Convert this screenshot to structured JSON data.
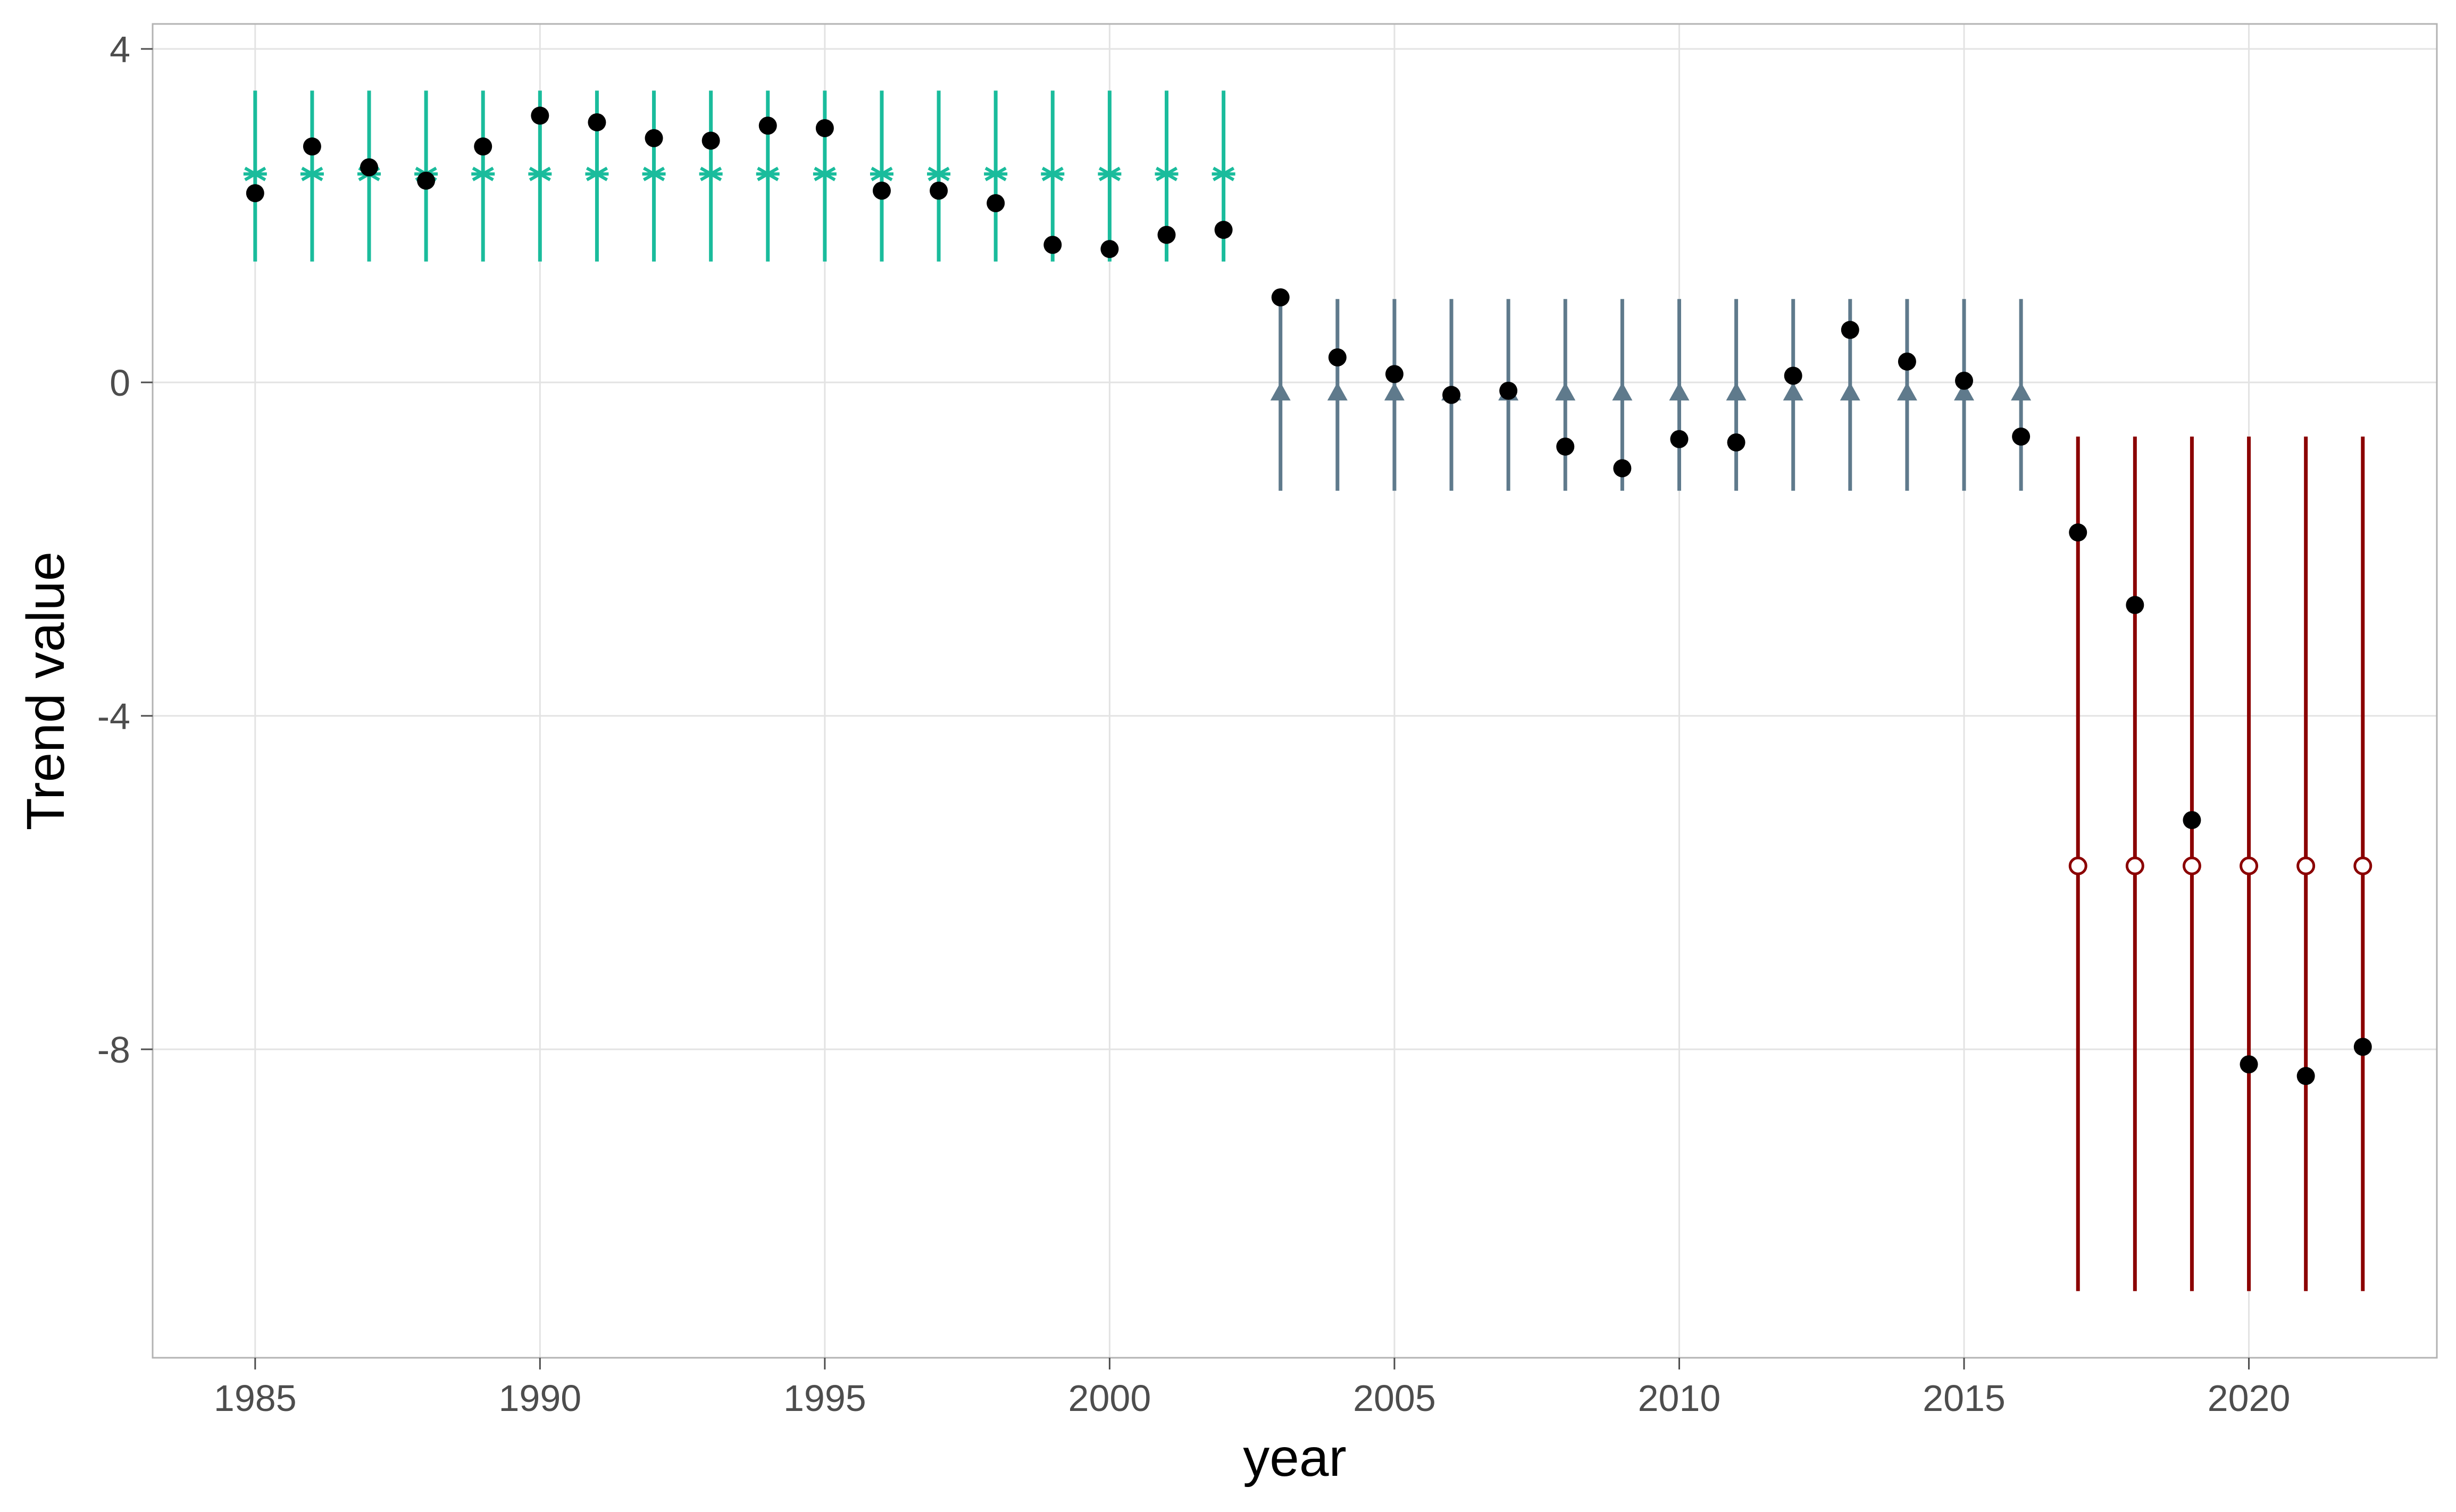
{
  "chart_data": {
    "type": "scatter",
    "xlabel": "year",
    "ylabel": "Trend value",
    "xlim": [
      1983.2,
      2023.3
    ],
    "ylim": [
      -11.7,
      4.3
    ],
    "x_ticks": [
      1985,
      1990,
      1995,
      2000,
      2005,
      2010,
      2015,
      2020
    ],
    "x_tick_labels": [
      "1985",
      "1990",
      "1995",
      "2000",
      "2005",
      "2010",
      "2015",
      "2020"
    ],
    "y_ticks": [
      4,
      0,
      -4,
      -8
    ],
    "y_tick_labels": [
      "4",
      "0",
      "-4",
      "-8"
    ],
    "grid": true,
    "legend": "none",
    "series": [
      {
        "marker": "asterisk",
        "color": "#1abc9c",
        "years": [
          1985,
          1986,
          1987,
          1988,
          1989,
          1990,
          1991,
          1992,
          1993,
          1994,
          1995,
          1996,
          1997,
          1998,
          1999,
          2000,
          2001,
          2002
        ],
        "center": 2.5,
        "lower": 1.45,
        "upper": 3.5
      },
      {
        "marker": "triangle",
        "color": "#5f7a8c",
        "years": [
          2003,
          2004,
          2005,
          2006,
          2007,
          2008,
          2009,
          2010,
          2011,
          2012,
          2013,
          2014,
          2015,
          2016
        ],
        "center": -0.12,
        "lower": -1.3,
        "upper": 1.0
      },
      {
        "marker": "open-circle",
        "color": "#8b0000",
        "years": [
          2017,
          2018,
          2019,
          2020,
          2021,
          2022
        ],
        "center": -5.8,
        "lower": -10.9,
        "upper": -0.65
      }
    ],
    "points": {
      "color": "#000000",
      "x": [
        1985,
        1986,
        1987,
        1988,
        1989,
        1990,
        1991,
        1992,
        1993,
        1994,
        1995,
        1996,
        1997,
        1998,
        1999,
        2000,
        2001,
        2002,
        2003,
        2004,
        2005,
        2006,
        2007,
        2008,
        2009,
        2010,
        2011,
        2012,
        2013,
        2014,
        2015,
        2016,
        2017,
        2018,
        2019,
        2020,
        2021,
        2022
      ],
      "y": [
        2.27,
        2.83,
        2.58,
        2.42,
        2.83,
        3.2,
        3.12,
        2.93,
        2.9,
        3.08,
        3.05,
        2.3,
        2.3,
        2.15,
        1.65,
        1.6,
        1.77,
        1.83,
        1.02,
        0.3,
        0.1,
        -0.15,
        -0.1,
        -0.77,
        -1.03,
        -0.68,
        -0.72,
        0.08,
        0.63,
        0.25,
        0.02,
        -0.65,
        -1.8,
        -2.67,
        -5.25,
        -8.18,
        -8.32,
        -7.97
      ]
    }
  }
}
